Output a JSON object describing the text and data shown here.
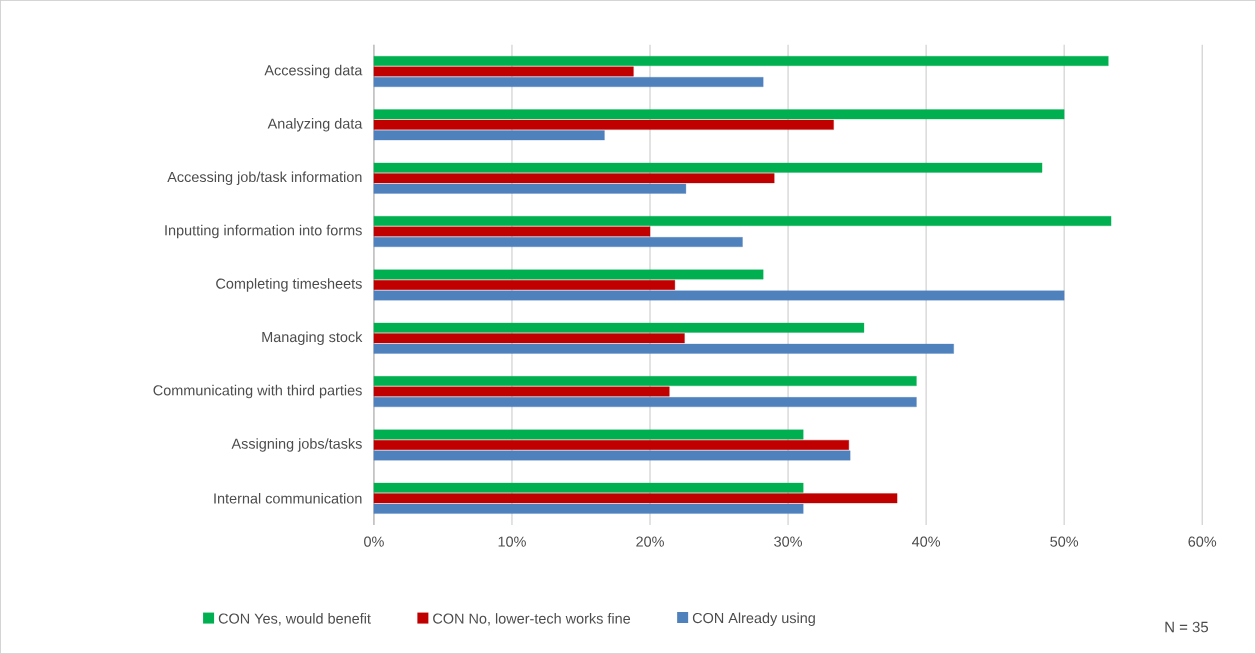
{
  "chart_data": {
    "type": "bar",
    "orientation": "horizontal",
    "categories": [
      "Accessing data",
      "Analyzing data",
      "Accessing job/task information",
      "Inputting information into forms",
      "Completing timesheets",
      "Managing stock",
      "Communicating with third parties",
      "Assigning jobs/tasks",
      "Internal communication"
    ],
    "series": [
      {
        "name": "CON Yes, would benefit",
        "color": "#00b050",
        "values": [
          53.2,
          50.0,
          48.4,
          53.4,
          28.2,
          35.5,
          39.3,
          31.1,
          31.1
        ]
      },
      {
        "name": "CON No, lower-tech works fine",
        "color": "#c00000",
        "values": [
          18.8,
          33.3,
          29.0,
          20.0,
          21.8,
          22.5,
          21.4,
          34.4,
          37.9
        ]
      },
      {
        "name": "CON Already using",
        "color": "#4f81bd",
        "values": [
          28.2,
          16.7,
          22.6,
          26.7,
          50.0,
          42.0,
          39.3,
          34.5,
          31.1
        ]
      }
    ],
    "xlim": [
      0,
      60
    ],
    "xticks": [
      {
        "value": 0,
        "label": "0%"
      },
      {
        "value": 10,
        "label": "10%"
      },
      {
        "value": 20,
        "label": "20%"
      },
      {
        "value": 30,
        "label": "30%"
      },
      {
        "value": 40,
        "label": "40%"
      },
      {
        "value": 50,
        "label": "50%"
      },
      {
        "value": 60,
        "label": "60%"
      }
    ],
    "grid": "x",
    "legend": "bottom",
    "annotations": [
      "N = 35"
    ]
  }
}
